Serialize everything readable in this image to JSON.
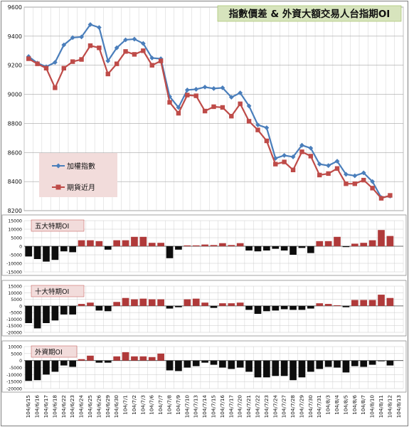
{
  "title": "指數價差 & 外資大額交易人台指期OI",
  "colors": {
    "index_line": "#4a7ebb",
    "futures_line": "#be4b48",
    "bar_positive": "#b03a3a",
    "bar_negative": "#0d0d0d",
    "legend_bg": "#f2dcdb",
    "title_bg": "#d7e4bd",
    "panel_label_bg": "#f2dcdb"
  },
  "dates": [
    "104/6/15",
    "104/6/16",
    "104/6/17",
    "104/6/18",
    "104/6/22",
    "104/6/23",
    "104/6/24",
    "104/6/25",
    "104/6/26",
    "104/6/29",
    "104/6/30",
    "104/7/1",
    "104/7/2",
    "104/7/3",
    "104/7/6",
    "104/7/7",
    "104/7/8",
    "104/7/9",
    "104/7/10",
    "104/7/13",
    "104/7/14",
    "104/7/15",
    "104/7/16",
    "104/7/17",
    "104/7/20",
    "104/7/21",
    "104/7/22",
    "104/7/23",
    "104/7/24",
    "104/7/27",
    "104/7/28",
    "104/7/29",
    "104/7/30",
    "104/7/31",
    "104/8/3",
    "104/8/4",
    "104/8/5",
    "104/8/6",
    "104/8/7",
    "104/8/10",
    "104/8/11",
    "104/8/12",
    "104/8/13"
  ],
  "chart_data": [
    {
      "type": "line",
      "title": "指數價差 & 外資大額交易人台指期OI",
      "ylim": [
        8200,
        9600
      ],
      "yticks": [
        8200,
        8400,
        8600,
        8800,
        9000,
        9200,
        9400,
        9600
      ],
      "grid": true,
      "legend_position": "bottom-left",
      "series": [
        {
          "name": "加權指數",
          "values": [
            9260,
            9215,
            9190,
            9220,
            9340,
            9390,
            9395,
            9480,
            9460,
            9230,
            9320,
            9375,
            9380,
            9350,
            9250,
            9245,
            8985,
            8910,
            9030,
            9035,
            9050,
            9040,
            9045,
            8980,
            9010,
            8920,
            8790,
            8770,
            8560,
            8580,
            8570,
            8650,
            8630,
            8520,
            8510,
            8540,
            8450,
            8440,
            8460,
            8400,
            8290,
            8300,
            null
          ]
        },
        {
          "name": "期貨近月",
          "values": [
            9245,
            9210,
            9180,
            9045,
            9180,
            9225,
            9240,
            9335,
            9320,
            9140,
            9210,
            9295,
            9275,
            9300,
            9200,
            9230,
            8945,
            8870,
            8995,
            8990,
            8885,
            8915,
            8910,
            8850,
            8935,
            8815,
            8755,
            8680,
            8520,
            8535,
            8480,
            8605,
            8575,
            8445,
            8455,
            8490,
            8385,
            8385,
            8410,
            8355,
            8285,
            8305,
            null
          ]
        }
      ]
    },
    {
      "type": "bar",
      "title": "五大特期OI",
      "ylim": [
        -15000,
        15000
      ],
      "yticks": [
        -15000,
        -10000,
        -5000,
        0,
        5000,
        10000,
        15000
      ],
      "values": [
        -6000,
        -7500,
        -9000,
        -8000,
        -3000,
        -3500,
        3500,
        3500,
        3000,
        -2000,
        3500,
        3500,
        5500,
        5500,
        2000,
        2000,
        -7000,
        -2000,
        500,
        500,
        1000,
        700,
        1800,
        700,
        1800,
        -2500,
        -3000,
        -2500,
        -1500,
        -2500,
        -5000,
        -1000,
        -4000,
        3000,
        3000,
        5500,
        -500,
        1500,
        2000,
        3500,
        9500,
        6000,
        null
      ]
    },
    {
      "type": "bar",
      "title": "十大特期OI",
      "ylim": [
        -20000,
        15000
      ],
      "yticks": [
        -20000,
        -15000,
        -10000,
        -5000,
        0,
        5000,
        10000,
        15000
      ],
      "values": [
        -13000,
        -17000,
        -13000,
        -11000,
        -6500,
        -6500,
        1500,
        2500,
        -3500,
        -4000,
        3000,
        6000,
        5000,
        5500,
        5000,
        5000,
        -2000,
        -1000,
        5000,
        5500,
        2500,
        -1500,
        2000,
        2000,
        2500,
        -3000,
        -6000,
        -4000,
        -3500,
        -2500,
        -3000,
        -3000,
        -2000,
        2000,
        1500,
        500,
        -1000,
        4500,
        4500,
        4500,
        8500,
        6000,
        null
      ]
    },
    {
      "type": "bar",
      "title": "外資期OI",
      "ylim": [
        -20000,
        10000
      ],
      "yticks": [
        -20000,
        -15000,
        -10000,
        -5000,
        0,
        5000,
        10000
      ],
      "values": [
        -14500,
        -14000,
        -10000,
        -8000,
        -3500,
        -4500,
        1000,
        3500,
        -1500,
        -1500,
        3000,
        6000,
        3000,
        3000,
        2500,
        5000,
        -7000,
        -7500,
        -5000,
        -4000,
        -1500,
        -3000,
        -5000,
        -6000,
        -5000,
        -8000,
        -12000,
        -12000,
        -11000,
        -11000,
        -14000,
        -12000,
        -8000,
        -6000,
        -4500,
        -5000,
        -8500,
        -4000,
        -4500,
        -3000,
        -500,
        -3500,
        null
      ]
    }
  ]
}
